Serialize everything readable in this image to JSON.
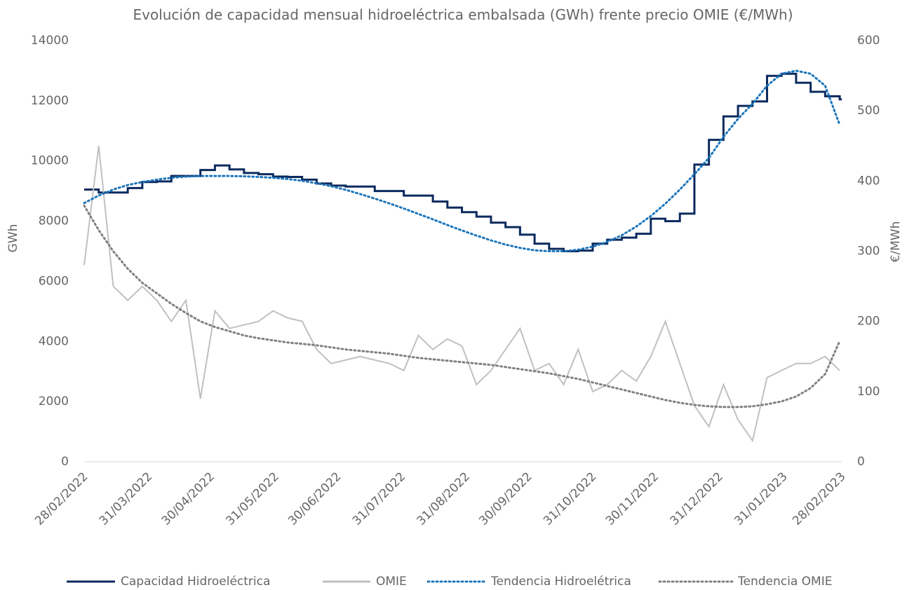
{
  "chart_data": {
    "type": "line",
    "title": "Evolución de capacidad mensual hidroeléctrica embalsada (GWh) frente precio OMIE (€/MWh)",
    "ylabel": "GWh",
    "y2label": "€/MWh",
    "x": [
      "28/02/2022",
      "07/03/2022",
      "14/03/2022",
      "21/03/2022",
      "28/03/2022",
      "04/04/2022",
      "11/04/2022",
      "18/04/2022",
      "25/04/2022",
      "02/05/2022",
      "09/05/2022",
      "16/05/2022",
      "23/05/2022",
      "30/05/2022",
      "06/06/2022",
      "13/06/2022",
      "20/06/2022",
      "27/06/2022",
      "04/07/2022",
      "11/07/2022",
      "18/07/2022",
      "25/07/2022",
      "01/08/2022",
      "08/08/2022",
      "15/08/2022",
      "22/08/2022",
      "29/08/2022",
      "05/09/2022",
      "12/09/2022",
      "19/09/2022",
      "26/09/2022",
      "03/10/2022",
      "10/10/2022",
      "17/10/2022",
      "24/10/2022",
      "31/10/2022",
      "07/11/2022",
      "14/11/2022",
      "21/11/2022",
      "28/11/2022",
      "05/12/2022",
      "12/12/2022",
      "19/12/2022",
      "26/12/2022",
      "02/01/2023",
      "09/01/2023",
      "16/01/2023",
      "23/01/2023",
      "30/01/2023",
      "06/02/2023",
      "13/02/2023",
      "20/02/2023",
      "27/02/2023"
    ],
    "xlim": [
      "28/02/2022",
      "28/02/2023"
    ],
    "xticks": [
      "28/02/2022",
      "31/03/2022",
      "30/04/2022",
      "31/05/2022",
      "30/06/2022",
      "31/07/2022",
      "31/08/2022",
      "30/09/2022",
      "31/10/2022",
      "30/11/2022",
      "31/12/2022",
      "31/01/2023",
      "28/02/2023"
    ],
    "ylim": [
      0,
      14000
    ],
    "yticks": [
      0,
      2000,
      4000,
      6000,
      8000,
      10000,
      12000,
      14000
    ],
    "y2lim": [
      0,
      600
    ],
    "y2ticks": [
      0,
      100,
      200,
      300,
      400,
      500,
      600
    ],
    "legend": "bottom",
    "series": [
      {
        "name": "Capacidad Hidroeléctrica",
        "color": "#0b2a5e",
        "style": "step",
        "values": [
          9050,
          8950,
          8950,
          9100,
          9300,
          9320,
          9500,
          9500,
          9700,
          9850,
          9720,
          9600,
          9560,
          9480,
          9470,
          9380,
          9250,
          9180,
          9150,
          9150,
          9000,
          9000,
          8850,
          8850,
          8650,
          8450,
          8300,
          8150,
          7950,
          7800,
          7550,
          7250,
          7080,
          7000,
          7020,
          7250,
          7380,
          7450,
          7580,
          8080,
          8000,
          8250,
          9880,
          10700,
          11480,
          11830,
          11980,
          12830,
          12900,
          12600,
          12300,
          12150,
          12050
        ]
      },
      {
        "name": "OMIE",
        "color": "#c0c0c0",
        "style": "solid",
        "axis": "y2",
        "values": [
          280,
          450,
          250,
          230,
          250,
          230,
          200,
          230,
          90,
          215,
          190,
          195,
          200,
          215,
          205,
          200,
          160,
          140,
          145,
          150,
          145,
          140,
          130,
          180,
          160,
          175,
          165,
          110,
          130,
          160,
          190,
          130,
          140,
          110,
          160,
          100,
          110,
          130,
          115,
          150,
          200,
          140,
          80,
          50,
          110,
          60,
          30,
          120,
          130,
          140,
          140,
          150,
          130
        ]
      },
      {
        "name": "Tendencia Hidroelétrica",
        "color": "#1b75bc",
        "style": "dotted",
        "values": [
          8600,
          8850,
          9050,
          9200,
          9300,
          9380,
          9440,
          9480,
          9500,
          9500,
          9500,
          9490,
          9470,
          9440,
          9400,
          9340,
          9260,
          9160,
          9040,
          8900,
          8750,
          8590,
          8420,
          8240,
          8060,
          7870,
          7690,
          7520,
          7360,
          7220,
          7110,
          7030,
          7000,
          7000,
          7050,
          7150,
          7310,
          7530,
          7820,
          8170,
          8580,
          9050,
          9560,
          10100,
          10800,
          11400,
          11900,
          12500,
          12900,
          13000,
          12900,
          12500,
          11200
        ]
      },
      {
        "name": "Tendencia OMIE",
        "color": "#808080",
        "style": "dotted",
        "axis": "y2",
        "values": [
          365,
          330,
          300,
          275,
          255,
          240,
          225,
          212,
          200,
          192,
          186,
          180,
          176,
          173,
          170,
          168,
          166,
          163,
          160,
          158,
          156,
          154,
          151,
          148,
          146,
          144,
          142,
          140,
          138,
          135,
          132,
          129,
          126,
          122,
          118,
          113,
          108,
          103,
          98,
          93,
          88,
          84,
          81,
          79,
          78,
          78,
          79,
          82,
          86,
          93,
          105,
          125,
          172
        ]
      }
    ]
  }
}
